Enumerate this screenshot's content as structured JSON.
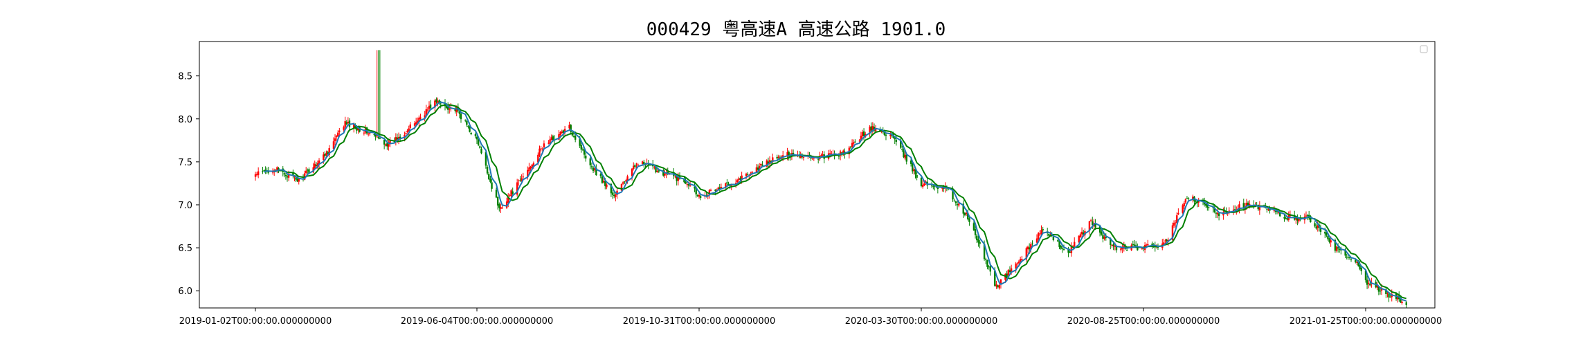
{
  "chart_data": {
    "type": "candlestick",
    "title": "000429 粤高速A 高速公路 1901.0",
    "xlabel": "",
    "ylabel": "",
    "ylim": [
      5.8,
      8.9
    ],
    "grid": false,
    "legend": "top-right (empty)",
    "colors": {
      "up": "#ff0000",
      "down": "#008000",
      "ma_short": "#1f77b4",
      "ma_long": "#008000"
    },
    "x_ticks": [
      "2019-01-02T00:00:00.000000000",
      "2019-06-04T00:00:00.000000000",
      "2019-10-31T00:00:00.000000000",
      "2020-03-30T00:00:00.000000000",
      "2020-08-25T00:00:00.000000000",
      "2021-01-25T00:00:00.000000000"
    ],
    "y_ticks": [
      "6.0",
      "6.5",
      "7.0",
      "7.5",
      "8.0",
      "8.5"
    ],
    "series": [
      {
        "type": "close",
        "dates": [
          "2019-01-02",
          "2019-01-15",
          "2019-02-01",
          "2019-02-20",
          "2019-03-05",
          "2019-03-20",
          "2019-04-04",
          "2019-04-19",
          "2019-05-06",
          "2019-05-21",
          "2019-06-04",
          "2019-06-19",
          "2019-07-04",
          "2019-07-19",
          "2019-08-05",
          "2019-08-20",
          "2019-09-04",
          "2019-09-20",
          "2019-10-10",
          "2019-10-25",
          "2019-10-31",
          "2019-11-15",
          "2019-12-02",
          "2019-12-17",
          "2020-01-02",
          "2020-01-17",
          "2020-02-07",
          "2020-02-24",
          "2020-03-10",
          "2020-03-30",
          "2020-04-15",
          "2020-04-30",
          "2020-05-19",
          "2020-06-03",
          "2020-06-18",
          "2020-07-06",
          "2020-07-21",
          "2020-08-05",
          "2020-08-25",
          "2020-09-09",
          "2020-09-24",
          "2020-10-16",
          "2020-11-02",
          "2020-11-17",
          "2020-12-02",
          "2020-12-17",
          "2021-01-04",
          "2021-01-19",
          "2021-01-25",
          "2021-02-05",
          "2021-02-22"
        ],
        "values": [
          7.35,
          7.42,
          7.28,
          7.6,
          7.95,
          7.85,
          7.7,
          7.9,
          8.2,
          8.1,
          7.75,
          6.95,
          7.3,
          7.7,
          7.9,
          7.45,
          7.1,
          7.5,
          7.35,
          7.25,
          7.1,
          7.2,
          7.35,
          7.5,
          7.6,
          7.55,
          7.6,
          7.9,
          7.8,
          7.25,
          7.2,
          6.85,
          6.05,
          6.35,
          6.7,
          6.45,
          6.8,
          6.5,
          6.5,
          6.55,
          7.1,
          6.9,
          7.0,
          6.95,
          6.85,
          6.85,
          6.5,
          6.3,
          6.1,
          6.0,
          5.85
        ]
      },
      {
        "type": "high",
        "dates": [
          "2019-03-28"
        ],
        "values": [
          8.8
        ]
      }
    ]
  }
}
